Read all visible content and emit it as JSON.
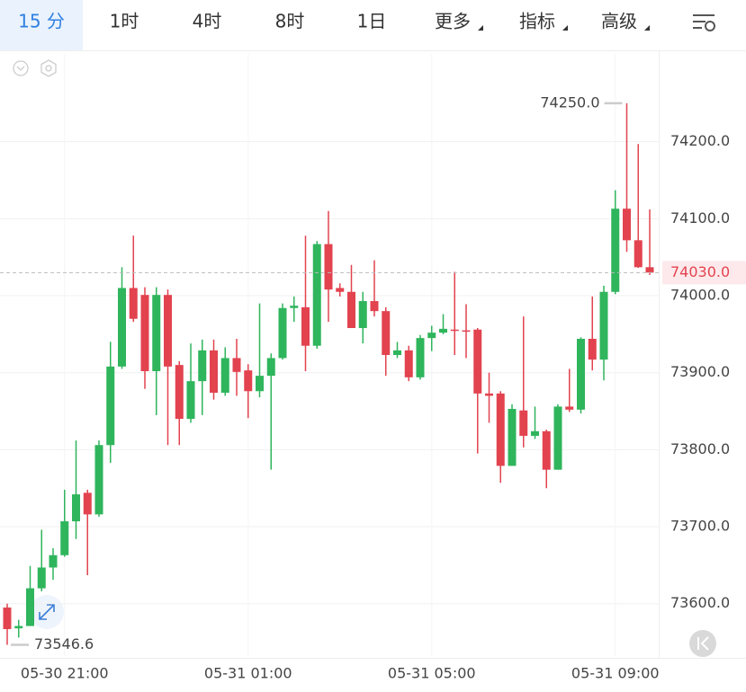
{
  "toolbar": {
    "tabs": [
      "15 分",
      "1时",
      "4时",
      "8时",
      "1日",
      "更多",
      "指标",
      "高级"
    ],
    "selected": 0
  },
  "chart_data": {
    "type": "candlestick",
    "categories": [
      null,
      null,
      null,
      null,
      null,
      "05-30 21:00",
      null,
      null,
      null,
      null,
      null,
      null,
      null,
      null,
      null,
      null,
      null,
      null,
      null,
      null,
      null,
      "05-31 01:00",
      null,
      null,
      null,
      null,
      null,
      null,
      null,
      null,
      null,
      null,
      null,
      null,
      null,
      null,
      null,
      "05-31 05:00",
      null,
      null,
      null,
      null,
      null,
      null,
      null,
      null,
      null,
      null,
      null,
      null,
      null,
      null,
      null,
      "05-31 09:00",
      null,
      null,
      null
    ],
    "open": [
      73595,
      73568,
      73571,
      73620,
      73647,
      73663,
      73707,
      73744,
      73716,
      73806,
      73908,
      74010,
      74001,
      73902,
      74001,
      73910,
      73840,
      73889,
      73929,
      73874,
      73919,
      73903,
      73876,
      73896,
      73919,
      73984,
      73985,
      73935,
      74067,
      74010,
      74005,
      73958,
      73993,
      73980,
      73923,
      73929,
      73894,
      73945,
      73952,
      73956,
      73955,
      73956,
      73873,
      73873,
      73779,
      73851,
      73818,
      73824,
      73774,
      73856,
      73852,
      73944,
      73917,
      74005,
      74113,
      74072,
      74037
    ],
    "high": [
      73600,
      73579,
      73649,
      73696,
      73672,
      73748,
      73812,
      73748,
      73812,
      73940,
      74037,
      74078,
      74011,
      74011,
      74008,
      73915,
      73938,
      73943,
      73943,
      73933,
      73944,
      73911,
      73990,
      73925,
      73990,
      73999,
      74078,
      74071,
      74110,
      74016,
      74040,
      74005,
      74046,
      73985,
      73940,
      73935,
      73949,
      73961,
      73976,
      74031,
      73989,
      73958,
      73900,
      73876,
      73859,
      73973,
      73856,
      73826,
      73859,
      73905,
      73946,
      73999,
      74013,
      74137,
      74250,
      74197,
      74112
    ],
    "low": [
      73546.6,
      73556,
      73571,
      73616,
      73631,
      73661,
      73684,
      73637,
      73713,
      73783,
      73905,
      73966,
      73879,
      73845,
      73806,
      73806,
      73835,
      73845,
      73865,
      73870,
      73870,
      73841,
      73868,
      73774,
      73917,
      73966,
      73902,
      73931,
      73966,
      73999,
      73958,
      73938,
      73973,
      73896,
      73919,
      73889,
      73891,
      73928,
      73950,
      73923,
      73919,
      73795,
      73835,
      73757,
      73779,
      73803,
      73814,
      73750,
      73774,
      73849,
      73847,
      73903,
      73890,
      74002,
      74057,
      74036,
      74027
    ],
    "close": [
      73567,
      73571,
      73620,
      73647,
      73663,
      73707,
      73742,
      73716,
      73806,
      73908,
      74010,
      73970,
      73902,
      74001,
      73908,
      73840,
      73889,
      73929,
      73874,
      73919,
      73901,
      73876,
      73896,
      73919,
      73984,
      73987,
      73935,
      74067,
      74008,
      74005,
      73958,
      73993,
      73980,
      73923,
      73929,
      73894,
      73945,
      73952,
      73957,
      73955,
      73954,
      73873,
      73870,
      73779,
      73853,
      73818,
      73824,
      73774,
      73856,
      73852,
      73944,
      73917,
      74005,
      74113,
      74072,
      74037,
      74030
    ],
    "up_color": "#2fb55c",
    "down_color": "#e2434f",
    "ylim": [
      73532,
      74314
    ],
    "yticks": [
      {
        "value": 73600,
        "label": "73600.0"
      },
      {
        "value": 73700,
        "label": "73700.0"
      },
      {
        "value": 73800,
        "label": "73800.0"
      },
      {
        "value": 73900,
        "label": "73900.0"
      },
      {
        "value": 74000,
        "label": "74000.0"
      },
      {
        "value": 74100,
        "label": "74100.0"
      },
      {
        "value": 74200,
        "label": "74200.0"
      }
    ],
    "grid": true,
    "annotations": [
      {
        "value": 74250,
        "label": "74250.0"
      },
      {
        "value": 73546.6,
        "label": "73546.6"
      }
    ],
    "last_price": {
      "value": 74030,
      "label": "74030.0"
    }
  }
}
